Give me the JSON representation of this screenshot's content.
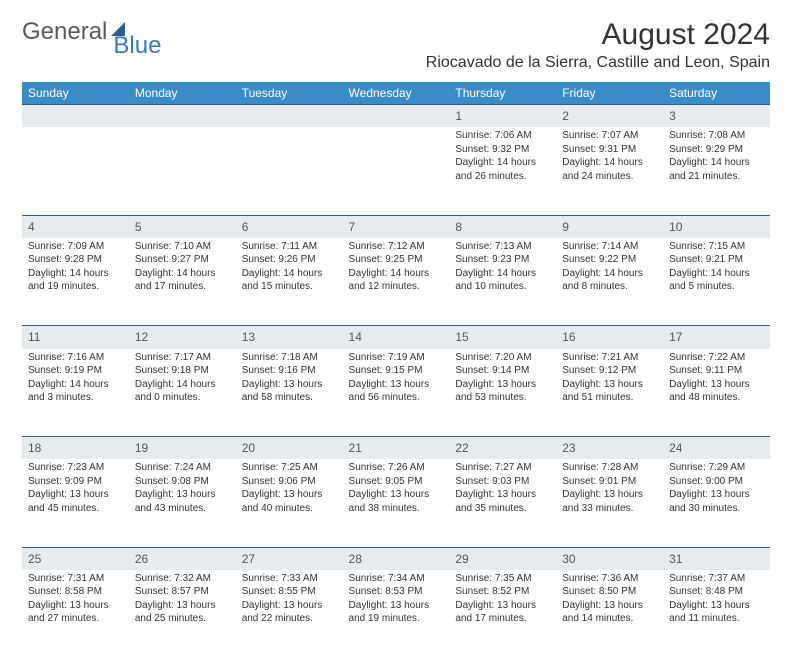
{
  "logo": {
    "text1": "General",
    "text2": "Blue"
  },
  "title": "August 2024",
  "location": "Riocavado de la Sierra, Castille and Leon, Spain",
  "colors": {
    "header_bg": "#3b8bc4",
    "header_text": "#ffffff",
    "daynum_bg": "#e8ebed",
    "row_border": "#2c5f8d",
    "body_text": "#333333",
    "logo_gray": "#5a5a5a",
    "logo_blue": "#3a7ab8"
  },
  "weekdays": [
    "Sunday",
    "Monday",
    "Tuesday",
    "Wednesday",
    "Thursday",
    "Friday",
    "Saturday"
  ],
  "weeks": [
    [
      null,
      null,
      null,
      null,
      {
        "n": "1",
        "sr": "7:06 AM",
        "ss": "9:32 PM",
        "dl": "14 hours and 26 minutes."
      },
      {
        "n": "2",
        "sr": "7:07 AM",
        "ss": "9:31 PM",
        "dl": "14 hours and 24 minutes."
      },
      {
        "n": "3",
        "sr": "7:08 AM",
        "ss": "9:29 PM",
        "dl": "14 hours and 21 minutes."
      }
    ],
    [
      {
        "n": "4",
        "sr": "7:09 AM",
        "ss": "9:28 PM",
        "dl": "14 hours and 19 minutes."
      },
      {
        "n": "5",
        "sr": "7:10 AM",
        "ss": "9:27 PM",
        "dl": "14 hours and 17 minutes."
      },
      {
        "n": "6",
        "sr": "7:11 AM",
        "ss": "9:26 PM",
        "dl": "14 hours and 15 minutes."
      },
      {
        "n": "7",
        "sr": "7:12 AM",
        "ss": "9:25 PM",
        "dl": "14 hours and 12 minutes."
      },
      {
        "n": "8",
        "sr": "7:13 AM",
        "ss": "9:23 PM",
        "dl": "14 hours and 10 minutes."
      },
      {
        "n": "9",
        "sr": "7:14 AM",
        "ss": "9:22 PM",
        "dl": "14 hours and 8 minutes."
      },
      {
        "n": "10",
        "sr": "7:15 AM",
        "ss": "9:21 PM",
        "dl": "14 hours and 5 minutes."
      }
    ],
    [
      {
        "n": "11",
        "sr": "7:16 AM",
        "ss": "9:19 PM",
        "dl": "14 hours and 3 minutes."
      },
      {
        "n": "12",
        "sr": "7:17 AM",
        "ss": "9:18 PM",
        "dl": "14 hours and 0 minutes."
      },
      {
        "n": "13",
        "sr": "7:18 AM",
        "ss": "9:16 PM",
        "dl": "13 hours and 58 minutes."
      },
      {
        "n": "14",
        "sr": "7:19 AM",
        "ss": "9:15 PM",
        "dl": "13 hours and 56 minutes."
      },
      {
        "n": "15",
        "sr": "7:20 AM",
        "ss": "9:14 PM",
        "dl": "13 hours and 53 minutes."
      },
      {
        "n": "16",
        "sr": "7:21 AM",
        "ss": "9:12 PM",
        "dl": "13 hours and 51 minutes."
      },
      {
        "n": "17",
        "sr": "7:22 AM",
        "ss": "9:11 PM",
        "dl": "13 hours and 48 minutes."
      }
    ],
    [
      {
        "n": "18",
        "sr": "7:23 AM",
        "ss": "9:09 PM",
        "dl": "13 hours and 45 minutes."
      },
      {
        "n": "19",
        "sr": "7:24 AM",
        "ss": "9:08 PM",
        "dl": "13 hours and 43 minutes."
      },
      {
        "n": "20",
        "sr": "7:25 AM",
        "ss": "9:06 PM",
        "dl": "13 hours and 40 minutes."
      },
      {
        "n": "21",
        "sr": "7:26 AM",
        "ss": "9:05 PM",
        "dl": "13 hours and 38 minutes."
      },
      {
        "n": "22",
        "sr": "7:27 AM",
        "ss": "9:03 PM",
        "dl": "13 hours and 35 minutes."
      },
      {
        "n": "23",
        "sr": "7:28 AM",
        "ss": "9:01 PM",
        "dl": "13 hours and 33 minutes."
      },
      {
        "n": "24",
        "sr": "7:29 AM",
        "ss": "9:00 PM",
        "dl": "13 hours and 30 minutes."
      }
    ],
    [
      {
        "n": "25",
        "sr": "7:31 AM",
        "ss": "8:58 PM",
        "dl": "13 hours and 27 minutes."
      },
      {
        "n": "26",
        "sr": "7:32 AM",
        "ss": "8:57 PM",
        "dl": "13 hours and 25 minutes."
      },
      {
        "n": "27",
        "sr": "7:33 AM",
        "ss": "8:55 PM",
        "dl": "13 hours and 22 minutes."
      },
      {
        "n": "28",
        "sr": "7:34 AM",
        "ss": "8:53 PM",
        "dl": "13 hours and 19 minutes."
      },
      {
        "n": "29",
        "sr": "7:35 AM",
        "ss": "8:52 PM",
        "dl": "13 hours and 17 minutes."
      },
      {
        "n": "30",
        "sr": "7:36 AM",
        "ss": "8:50 PM",
        "dl": "13 hours and 14 minutes."
      },
      {
        "n": "31",
        "sr": "7:37 AM",
        "ss": "8:48 PM",
        "dl": "13 hours and 11 minutes."
      }
    ]
  ],
  "labels": {
    "sunrise": "Sunrise:",
    "sunset": "Sunset:",
    "daylight": "Daylight:"
  }
}
